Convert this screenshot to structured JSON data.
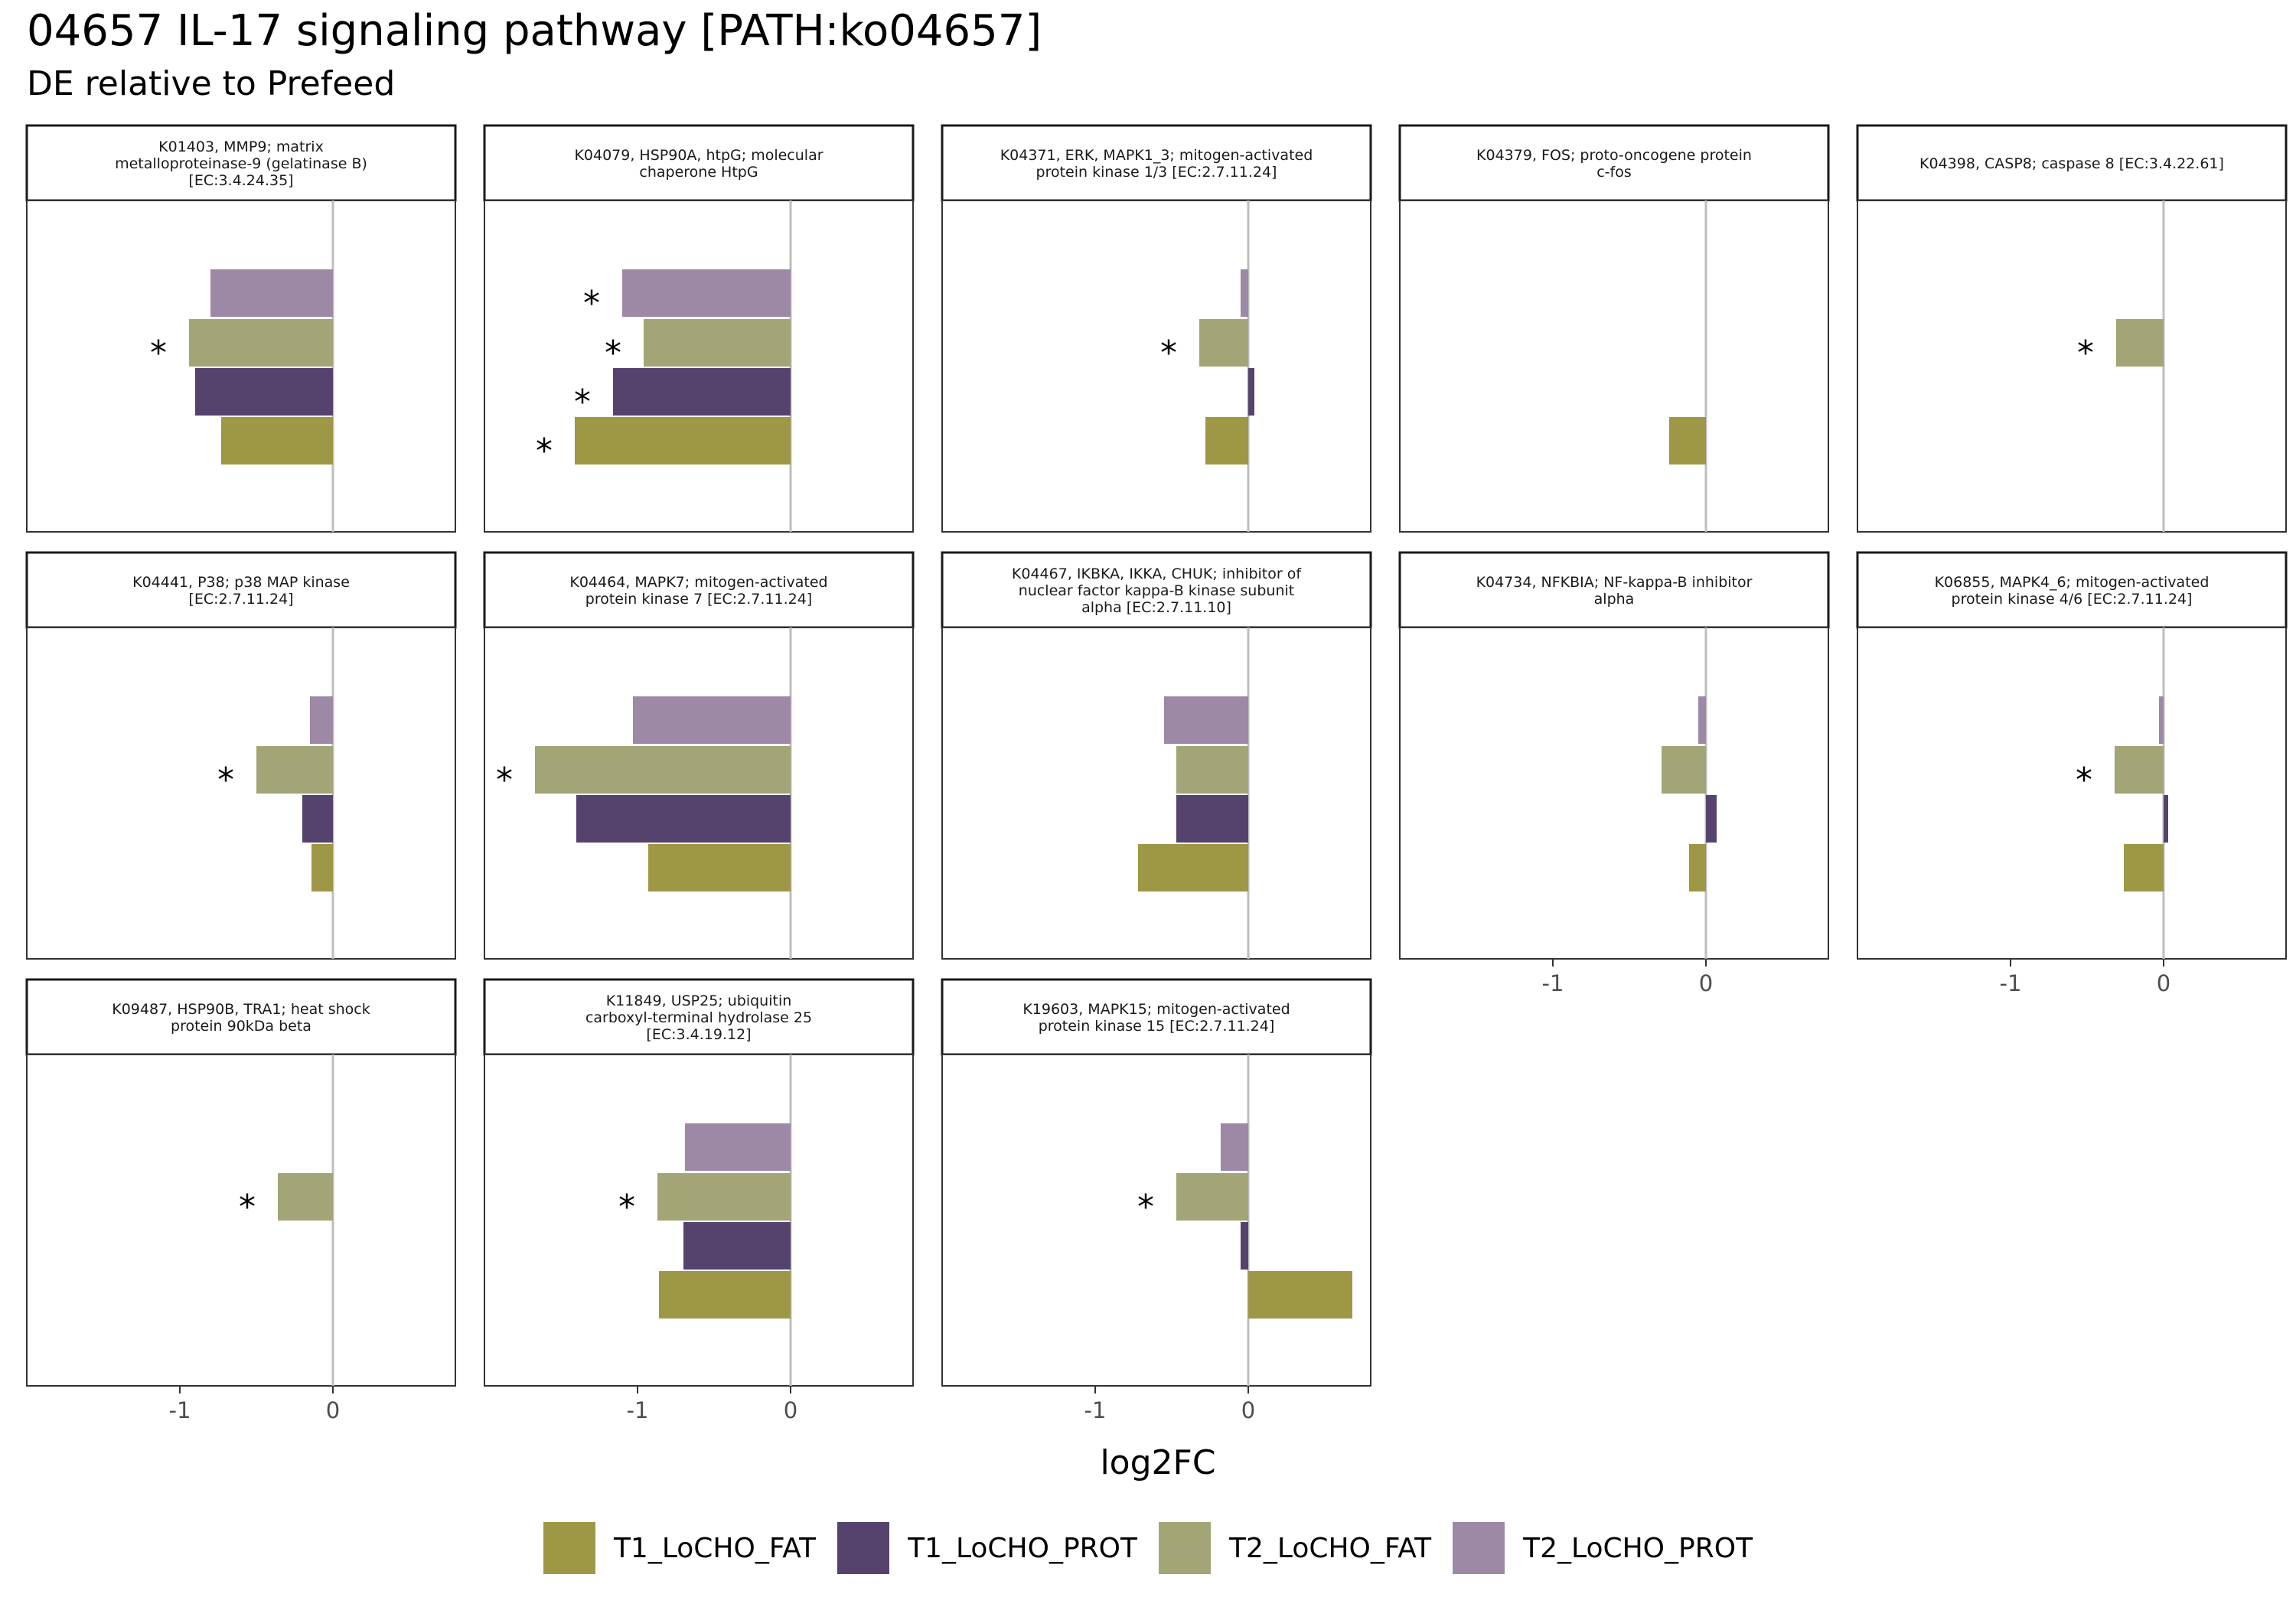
{
  "title": "04657 IL-17 signaling pathway [PATH:ko04657]",
  "subtitle": "DE relative to Prefeed",
  "chart_data": {
    "type": "bar",
    "orientation": "horizontal",
    "facet_layout": "wrap-5-columns",
    "xlabel": "log2FC",
    "xlim": [
      -2.0,
      0.8
    ],
    "x_ticks": [
      -1,
      0
    ],
    "x_tick_labels": [
      "-1",
      "0"
    ],
    "reference_line": 0,
    "significance_marker": "*",
    "legend_position": "bottom",
    "series": [
      {
        "name": "T1_LoCHO_FAT",
        "color": "#9e9746"
      },
      {
        "name": "T1_LoCHO_PROT",
        "color": "#55436e"
      },
      {
        "name": "T2_LoCHO_FAT",
        "color": "#a3a576"
      },
      {
        "name": "T2_LoCHO_PROT",
        "color": "#9d88a6"
      }
    ],
    "facets": [
      {
        "label": "K01403, MMP9; matrix\nmetalloproteinase-9 (gelatinase B)\n[EC:3.4.24.35]",
        "values": {
          "T2_LoCHO_PROT": -0.8,
          "T2_LoCHO_FAT": -0.94,
          "T1_LoCHO_PROT": -0.9,
          "T1_LoCHO_FAT": -0.73
        },
        "significant": [
          "T2_LoCHO_FAT"
        ]
      },
      {
        "label": "K04079, HSP90A, htpG; molecular\nchaperone HtpG",
        "values": {
          "T2_LoCHO_PROT": -1.1,
          "T2_LoCHO_FAT": -0.96,
          "T1_LoCHO_PROT": -1.16,
          "T1_LoCHO_FAT": -1.41
        },
        "significant": [
          "T2_LoCHO_PROT",
          "T2_LoCHO_FAT",
          "T1_LoCHO_PROT",
          "T1_LoCHO_FAT"
        ]
      },
      {
        "label": "K04371, ERK, MAPK1_3; mitogen-activated\nprotein kinase 1/3 [EC:2.7.11.24]",
        "values": {
          "T2_LoCHO_PROT": -0.05,
          "T2_LoCHO_FAT": -0.32,
          "T1_LoCHO_PROT": 0.04,
          "T1_LoCHO_FAT": -0.28
        },
        "significant": [
          "T2_LoCHO_FAT"
        ]
      },
      {
        "label": "K04379, FOS; proto-oncogene protein\nc-fos",
        "values": {
          "T2_LoCHO_PROT": null,
          "T2_LoCHO_FAT": null,
          "T1_LoCHO_PROT": null,
          "T1_LoCHO_FAT": -0.24
        },
        "significant": []
      },
      {
        "label": "K04398, CASP8; caspase 8 [EC:3.4.22.61]",
        "values": {
          "T2_LoCHO_PROT": null,
          "T2_LoCHO_FAT": -0.31,
          "T1_LoCHO_PROT": null,
          "T1_LoCHO_FAT": null
        },
        "significant": [
          "T2_LoCHO_FAT"
        ]
      },
      {
        "label": "K04441, P38; p38 MAP kinase\n[EC:2.7.11.24]",
        "values": {
          "T2_LoCHO_PROT": -0.15,
          "T2_LoCHO_FAT": -0.5,
          "T1_LoCHO_PROT": -0.2,
          "T1_LoCHO_FAT": -0.14
        },
        "significant": [
          "T2_LoCHO_FAT"
        ]
      },
      {
        "label": "K04464, MAPK7; mitogen-activated\nprotein kinase 7 [EC:2.7.11.24]",
        "values": {
          "T2_LoCHO_PROT": -1.03,
          "T2_LoCHO_FAT": -1.67,
          "T1_LoCHO_PROT": -1.4,
          "T1_LoCHO_FAT": -0.93
        },
        "significant": [
          "T2_LoCHO_FAT"
        ]
      },
      {
        "label": "K04467, IKBKA, IKKA, CHUK; inhibitor of\nnuclear factor kappa-B kinase subunit\nalpha [EC:2.7.11.10]",
        "values": {
          "T2_LoCHO_PROT": -0.55,
          "T2_LoCHO_FAT": -0.47,
          "T1_LoCHO_PROT": -0.47,
          "T1_LoCHO_FAT": -0.72
        },
        "significant": []
      },
      {
        "label": "K04734, NFKBIA; NF-kappa-B inhibitor\nalpha",
        "values": {
          "T2_LoCHO_PROT": -0.05,
          "T2_LoCHO_FAT": -0.29,
          "T1_LoCHO_PROT": 0.07,
          "T1_LoCHO_FAT": -0.11
        },
        "significant": []
      },
      {
        "label": "K06855, MAPK4_6; mitogen-activated\nprotein kinase 4/6 [EC:2.7.11.24]",
        "values": {
          "T2_LoCHO_PROT": -0.03,
          "T2_LoCHO_FAT": -0.32,
          "T1_LoCHO_PROT": 0.03,
          "T1_LoCHO_FAT": -0.26
        },
        "significant": [
          "T2_LoCHO_FAT"
        ]
      },
      {
        "label": "K09487, HSP90B, TRA1; heat shock\nprotein 90kDa beta",
        "values": {
          "T2_LoCHO_PROT": null,
          "T2_LoCHO_FAT": -0.36,
          "T1_LoCHO_PROT": null,
          "T1_LoCHO_FAT": null
        },
        "significant": [
          "T2_LoCHO_FAT"
        ]
      },
      {
        "label": "K11849, USP25; ubiquitin\ncarboxyl-terminal hydrolase 25\n[EC:3.4.19.12]",
        "values": {
          "T2_LoCHO_PROT": -0.69,
          "T2_LoCHO_FAT": -0.87,
          "T1_LoCHO_PROT": -0.7,
          "T1_LoCHO_FAT": -0.86
        },
        "significant": [
          "T2_LoCHO_FAT"
        ]
      },
      {
        "label": "K19603, MAPK15; mitogen-activated\nprotein kinase 15 [EC:2.7.11.24]",
        "values": {
          "T2_LoCHO_PROT": -0.18,
          "T2_LoCHO_FAT": -0.47,
          "T1_LoCHO_PROT": -0.05,
          "T1_LoCHO_FAT": 0.68
        },
        "significant": [
          "T2_LoCHO_FAT"
        ]
      }
    ]
  }
}
